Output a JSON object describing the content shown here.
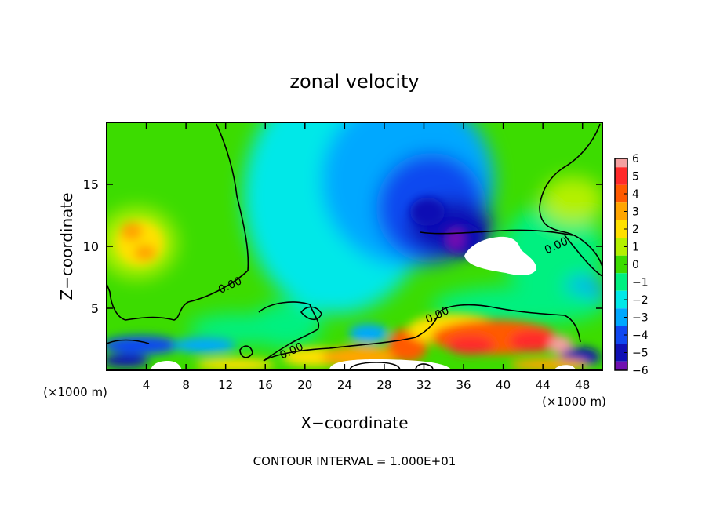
{
  "chart_data": {
    "type": "heatmap",
    "title": "zonal velocity",
    "xlabel": "X−coordinate",
    "ylabel": "Z−coordinate",
    "x_unit": "(×1000 m)",
    "z_unit": "(×1000 m)",
    "xlim": [
      0,
      50
    ],
    "ylim": [
      0,
      20
    ],
    "x_ticks": [
      4,
      8,
      12,
      16,
      20,
      24,
      28,
      32,
      36,
      40,
      44,
      48
    ],
    "x_tick_labels": [
      "4",
      "8",
      "12",
      "16",
      "20",
      "24",
      "28",
      "32",
      "36",
      "40",
      "44",
      "48"
    ],
    "y_ticks": [
      5,
      10,
      15
    ],
    "y_tick_labels": [
      "5",
      "10",
      "15"
    ],
    "colorbar": {
      "levels": [
        6,
        5,
        4,
        3,
        2,
        1,
        0,
        -1,
        -2,
        -3,
        -4,
        -5,
        -6
      ],
      "labels": [
        "6",
        "5",
        "4",
        "3",
        "2",
        "1",
        "0",
        "−1",
        "−2",
        "−3",
        "−4",
        "−5",
        "−6"
      ],
      "colors": [
        "#f4a0a0",
        "#ff2a2a",
        "#ff5a00",
        "#ffa500",
        "#ffe000",
        "#b4f000",
        "#3cdc00",
        "#00f080",
        "#00e8e8",
        "#00a8ff",
        "#1048f0",
        "#1010b4",
        "#7010b0"
      ]
    },
    "contour_labels": [
      {
        "text": "0.00",
        "x": 12.6,
        "z": 6.6
      },
      {
        "text": "0.00",
        "x": 18.8,
        "z": 1.3
      },
      {
        "text": "0.00",
        "x": 33.5,
        "z": 4.2
      },
      {
        "text": "0.00",
        "x": 45.5,
        "z": 9.8
      }
    ],
    "footer": "CONTOUR INTERVAL = 1.000E+01"
  }
}
